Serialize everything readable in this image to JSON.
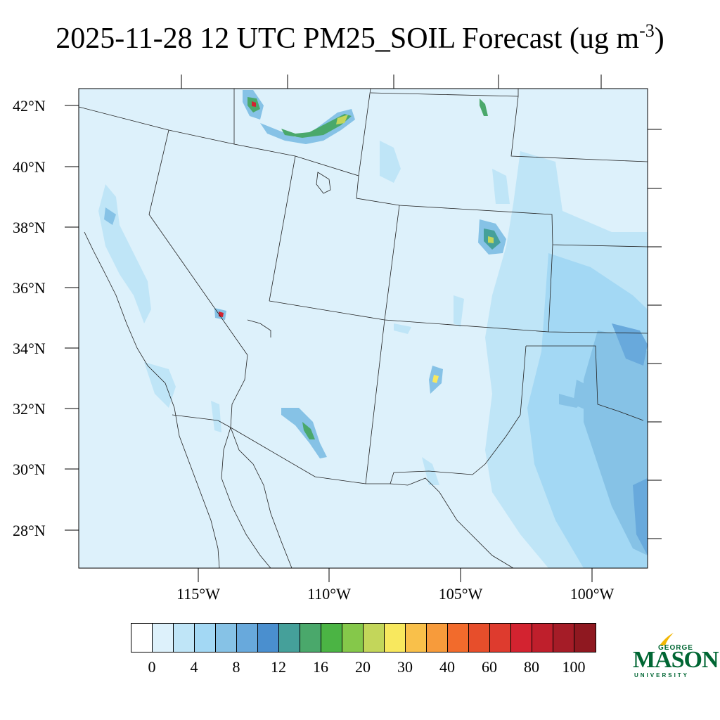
{
  "title": {
    "main": "2025-11-28 12 UTC PM25_SOIL Forecast (ug m",
    "superscript": "-3",
    "close": ")"
  },
  "map": {
    "background_color": "#ddf1fb",
    "border_color": "#000000",
    "lat_labels": [
      "42°N",
      "40°N",
      "38°N",
      "36°N",
      "34°N",
      "32°N",
      "30°N",
      "28°N"
    ],
    "lon_labels": [
      "115°W",
      "110°W",
      "105°W",
      "100°W"
    ]
  },
  "colorbar": {
    "colors": [
      "#ffffff",
      "#ddf1fb",
      "#bfe5f7",
      "#a3d8f4",
      "#86c2e6",
      "#68a9dc",
      "#4a8fcf",
      "#45a09a",
      "#4aa86b",
      "#4bb444",
      "#85c84a",
      "#c3d65a",
      "#f8e85e",
      "#f9c04a",
      "#f79b3b",
      "#f26b2c",
      "#e74e2b",
      "#de3b2e",
      "#d32330",
      "#bf1f2c",
      "#a51c27",
      "#8f1820"
    ],
    "labels": [
      "0",
      "4",
      "8",
      "12",
      "16",
      "20",
      "30",
      "40",
      "60",
      "80",
      "100"
    ]
  },
  "logo": {
    "line1": "GEORGE",
    "line2": "MASON",
    "line3": "UNIVERSITY",
    "color": "#006633",
    "flame_color": "#f2b705"
  }
}
